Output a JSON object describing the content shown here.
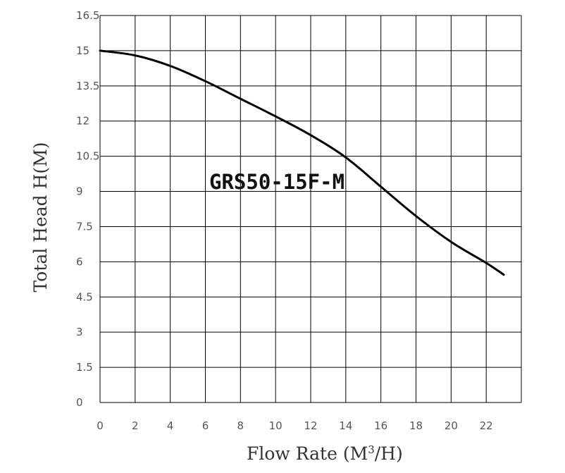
{
  "chart_data": {
    "type": "line",
    "title": "GRS50-15F-M",
    "xlabel": "Flow Rate (M",
    "xlabel_sup": "3",
    "xlabel_end": "/H)",
    "ylabel": "Total Head H(M)",
    "xlim": [
      0,
      24
    ],
    "ylim": [
      0,
      16.5
    ],
    "x_ticks": [
      {
        "v": 0,
        "label": "0"
      },
      {
        "v": 2,
        "label": "2"
      },
      {
        "v": 4,
        "label": "4"
      },
      {
        "v": 6,
        "label": "6"
      },
      {
        "v": 8,
        "label": "8"
      },
      {
        "v": 10,
        "label": "10"
      },
      {
        "v": 12,
        "label": "12"
      },
      {
        "v": 14,
        "label": "14"
      },
      {
        "v": 16,
        "label": "16"
      },
      {
        "v": 18,
        "label": "18"
      },
      {
        "v": 20,
        "label": "20"
      },
      {
        "v": 22,
        "label": "22"
      }
    ],
    "y_ticks": [
      {
        "v": 0,
        "label": "0"
      },
      {
        "v": 1.5,
        "label": "1.5"
      },
      {
        "v": 3,
        "label": "3"
      },
      {
        "v": 4.5,
        "label": "4.5"
      },
      {
        "v": 6,
        "label": "6"
      },
      {
        "v": 7.5,
        "label": "7.5"
      },
      {
        "v": 9,
        "label": "9"
      },
      {
        "v": 10.5,
        "label": "10.5"
      },
      {
        "v": 12,
        "label": "12"
      },
      {
        "v": 13.5,
        "label": "13.5"
      },
      {
        "v": 15,
        "label": "15"
      },
      {
        "v": 16.5,
        "label": "16.5"
      }
    ],
    "grid": true,
    "series": [
      {
        "x": [
          0,
          2,
          4,
          6,
          8,
          10,
          12,
          14,
          16,
          18,
          20,
          22,
          23
        ],
        "y": [
          15.0,
          14.8,
          14.35,
          13.7,
          12.95,
          12.2,
          11.4,
          10.45,
          9.2,
          7.95,
          6.85,
          5.95,
          5.45
        ]
      }
    ]
  }
}
